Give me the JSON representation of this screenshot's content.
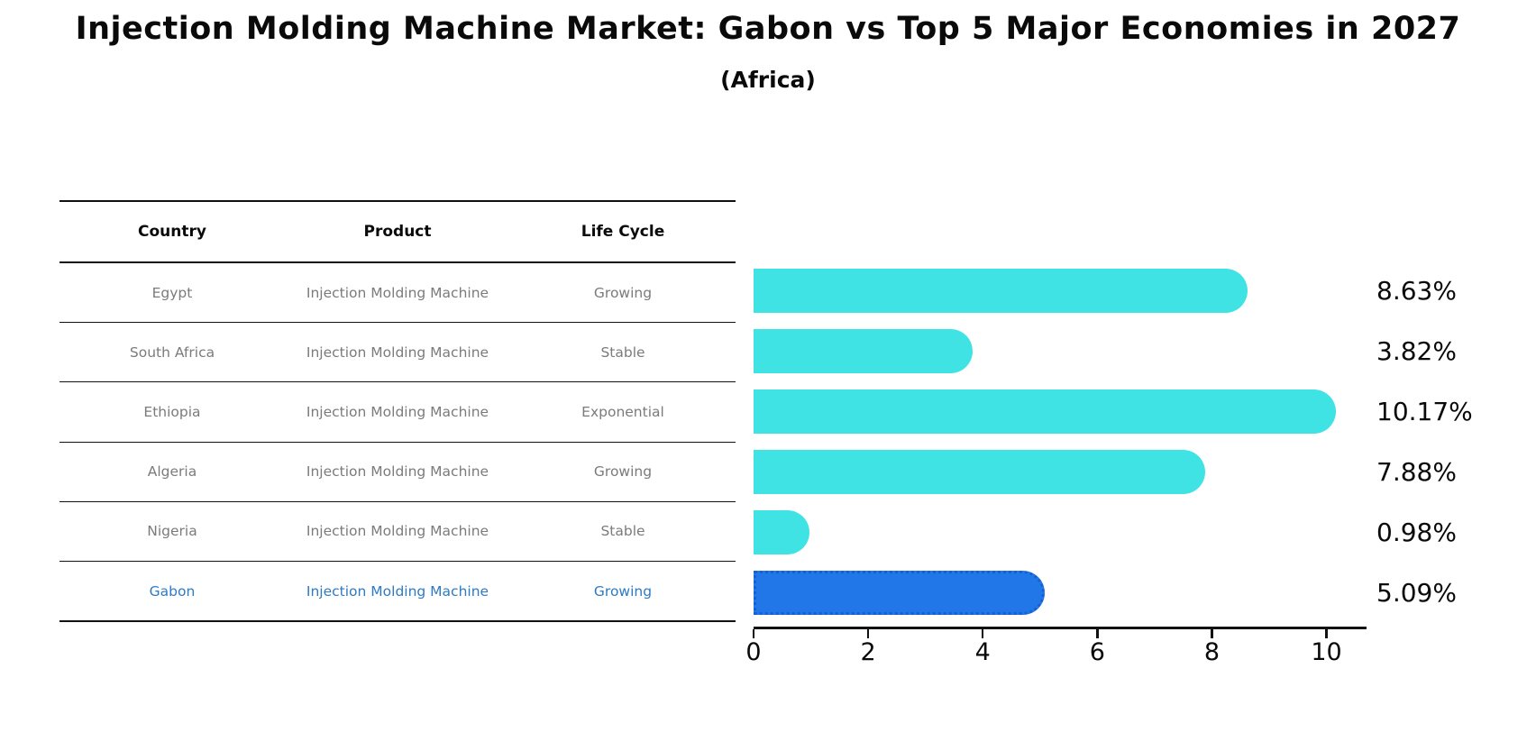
{
  "title": "Injection Molding Machine Market: Gabon vs Top 5 Major Economies in 2027",
  "subtitle": "(Africa)",
  "table": {
    "headers": [
      "Country",
      "Product",
      "Life Cycle"
    ],
    "rows": [
      {
        "country": "Egypt",
        "product": "Injection Molding Machine",
        "life_cycle": "Growing",
        "highlight": false
      },
      {
        "country": "South Africa",
        "product": "Injection Molding Machine",
        "life_cycle": "Stable",
        "highlight": false
      },
      {
        "country": "Ethiopia",
        "product": "Injection Molding Machine",
        "life_cycle": "Exponential",
        "highlight": false
      },
      {
        "country": "Algeria",
        "product": "Injection Molding Machine",
        "life_cycle": "Growing",
        "highlight": false
      },
      {
        "country": "Nigeria",
        "product": "Injection Molding Machine",
        "life_cycle": "Stable",
        "highlight": false
      },
      {
        "country": "Gabon",
        "product": "Injection Molding Machine",
        "life_cycle": "Growing",
        "highlight": true
      }
    ]
  },
  "chart_data": {
    "type": "bar",
    "orientation": "horizontal",
    "title": "Injection Molding Machine Market: Gabon vs Top 5 Major Economies in 2027",
    "subtitle": "(Africa)",
    "categories": [
      "Egypt",
      "South Africa",
      "Ethiopia",
      "Algeria",
      "Nigeria",
      "Gabon"
    ],
    "values": [
      8.63,
      3.82,
      10.17,
      7.88,
      0.98,
      5.09
    ],
    "value_labels": [
      "8.63%",
      "3.82%",
      "10.17%",
      "7.88%",
      "0.98%",
      "5.09%"
    ],
    "x_ticks": [
      0,
      2,
      4,
      6,
      8,
      10
    ],
    "xlim": [
      0,
      10.7
    ],
    "grid": false,
    "legend": false,
    "highlight_index": 5,
    "bar_color": "#40e3e3",
    "highlight_bar_color": "#2277e8",
    "highlight_border_color": "#1560d6",
    "highlight_text_color": "#2d7bc4",
    "row_text_color": "#7b7b7b",
    "axis_color": "#111111"
  }
}
